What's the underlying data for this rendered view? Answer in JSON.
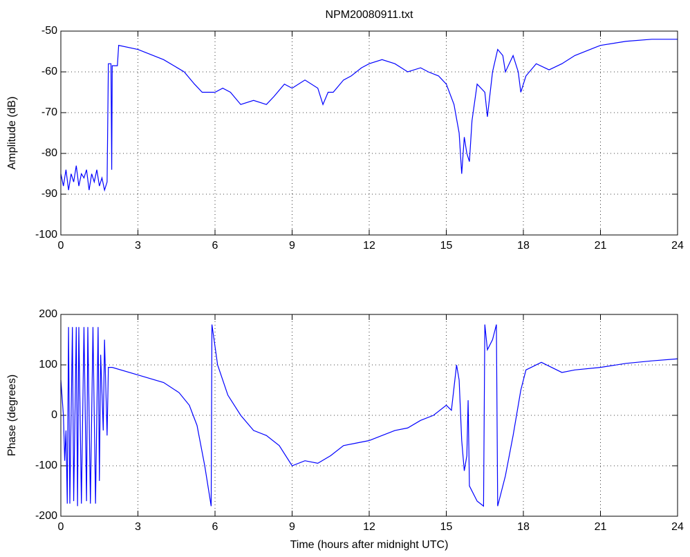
{
  "chart_data": [
    {
      "type": "line",
      "title": "NPM20080911.txt",
      "y_label": "Amplitude (dB)",
      "xlim": [
        0,
        24
      ],
      "xticks": [
        0,
        3,
        6,
        9,
        12,
        15,
        18,
        21,
        24
      ],
      "ylim": [
        -100,
        -50
      ],
      "yticks": [
        -100,
        -90,
        -80,
        -70,
        -60,
        -50
      ],
      "grid": true,
      "x": [
        0,
        0.1,
        0.2,
        0.3,
        0.4,
        0.5,
        0.6,
        0.7,
        0.8,
        0.9,
        1.0,
        1.1,
        1.2,
        1.3,
        1.4,
        1.5,
        1.6,
        1.7,
        1.8,
        1.85,
        1.95,
        1.98,
        2.0,
        2.2,
        2.25,
        3,
        4,
        4.8,
        5.2,
        5.5,
        6.0,
        6.3,
        6.6,
        7,
        7.5,
        8,
        8.3,
        8.7,
        9,
        9.5,
        10,
        10.2,
        10.4,
        10.6,
        11,
        11.3,
        11.7,
        12,
        12.5,
        13,
        13.5,
        14,
        14.3,
        14.7,
        15,
        15.3,
        15.5,
        15.6,
        15.7,
        15.8,
        15.9,
        16.0,
        16.2,
        16.5,
        16.6,
        16.8,
        17,
        17.2,
        17.3,
        17.6,
        17.8,
        17.9,
        18.1,
        18.5,
        19.0,
        19.5,
        20,
        20.8,
        21,
        22,
        23,
        24
      ],
      "series": [
        {
          "color": "#0000ff",
          "values": [
            -85,
            -88,
            -84,
            -89,
            -85,
            -87,
            -83,
            -88,
            -85,
            -86,
            -84,
            -89,
            -85,
            -87,
            -84,
            -88,
            -86,
            -89,
            -87,
            -58,
            -58,
            -84,
            -58.5,
            -58.5,
            -53.5,
            -54.5,
            -57,
            -60,
            -63,
            -65,
            -65,
            -64,
            -65,
            -68,
            -67,
            -68,
            -66,
            -63,
            -64,
            -62,
            -64,
            -68,
            -65,
            -65,
            -62,
            -61,
            -59,
            -58,
            -57,
            -58,
            -60,
            -59,
            -60,
            -61,
            -63,
            -68,
            -75,
            -85,
            -76,
            -80,
            -82,
            -72,
            -63,
            -65,
            -71,
            -60,
            -54.5,
            -56,
            -60,
            -56,
            -60,
            -65,
            -61,
            -58,
            -59.5,
            -58,
            -56,
            -54,
            -53.5,
            -52.5,
            -52,
            -52
          ]
        }
      ]
    },
    {
      "type": "line",
      "y_label": "Phase (degrees)",
      "x_label": "Time (hours after midnight UTC)",
      "xlim": [
        0,
        24
      ],
      "xticks": [
        0,
        3,
        6,
        9,
        12,
        15,
        18,
        21,
        24
      ],
      "ylim": [
        -200,
        200
      ],
      "yticks": [
        -200,
        -100,
        0,
        100,
        200
      ],
      "grid": true,
      "x": [
        0,
        0.1,
        0.15,
        0.2,
        0.25,
        0.3,
        0.35,
        0.45,
        0.5,
        0.6,
        0.65,
        0.7,
        0.8,
        0.9,
        1.0,
        1.05,
        1.15,
        1.25,
        1.35,
        1.45,
        1.5,
        1.55,
        1.65,
        1.7,
        1.8,
        1.85,
        2,
        3,
        4,
        4.6,
        5,
        5.3,
        5.6,
        5.85,
        5.88,
        6.1,
        6.5,
        7,
        7.5,
        8,
        8.5,
        9,
        9.5,
        10,
        10.5,
        11,
        11.5,
        12,
        12.5,
        13,
        13.5,
        14,
        14.5,
        15,
        15.2,
        15.4,
        15.5,
        15.6,
        15.7,
        15.8,
        15.85,
        15.9,
        16.2,
        16.45,
        16.5,
        16.6,
        16.8,
        16.95,
        17.0,
        17.3,
        17.6,
        17.9,
        18.1,
        18.7,
        19.5,
        20,
        21,
        22,
        23,
        24
      ],
      "series": [
        {
          "color": "#0000ff",
          "values": [
            70,
            0,
            -90,
            -30,
            -175,
            175,
            -175,
            175,
            -170,
            175,
            -180,
            175,
            -175,
            175,
            -170,
            175,
            -175,
            175,
            -175,
            175,
            -130,
            120,
            -30,
            150,
            -40,
            95,
            95,
            80,
            65,
            45,
            20,
            -20,
            -100,
            -180,
            180,
            100,
            40,
            0,
            -30,
            -40,
            -60,
            -100,
            -90,
            -95,
            -80,
            -60,
            -55,
            -50,
            -40,
            -30,
            -25,
            -10,
            0,
            20,
            10,
            100,
            70,
            -50,
            -110,
            -80,
            30,
            -140,
            -170,
            -180,
            180,
            130,
            150,
            180,
            -180,
            -120,
            -40,
            50,
            90,
            105,
            85,
            90,
            95,
            103,
            108,
            112
          ]
        }
      ]
    }
  ]
}
